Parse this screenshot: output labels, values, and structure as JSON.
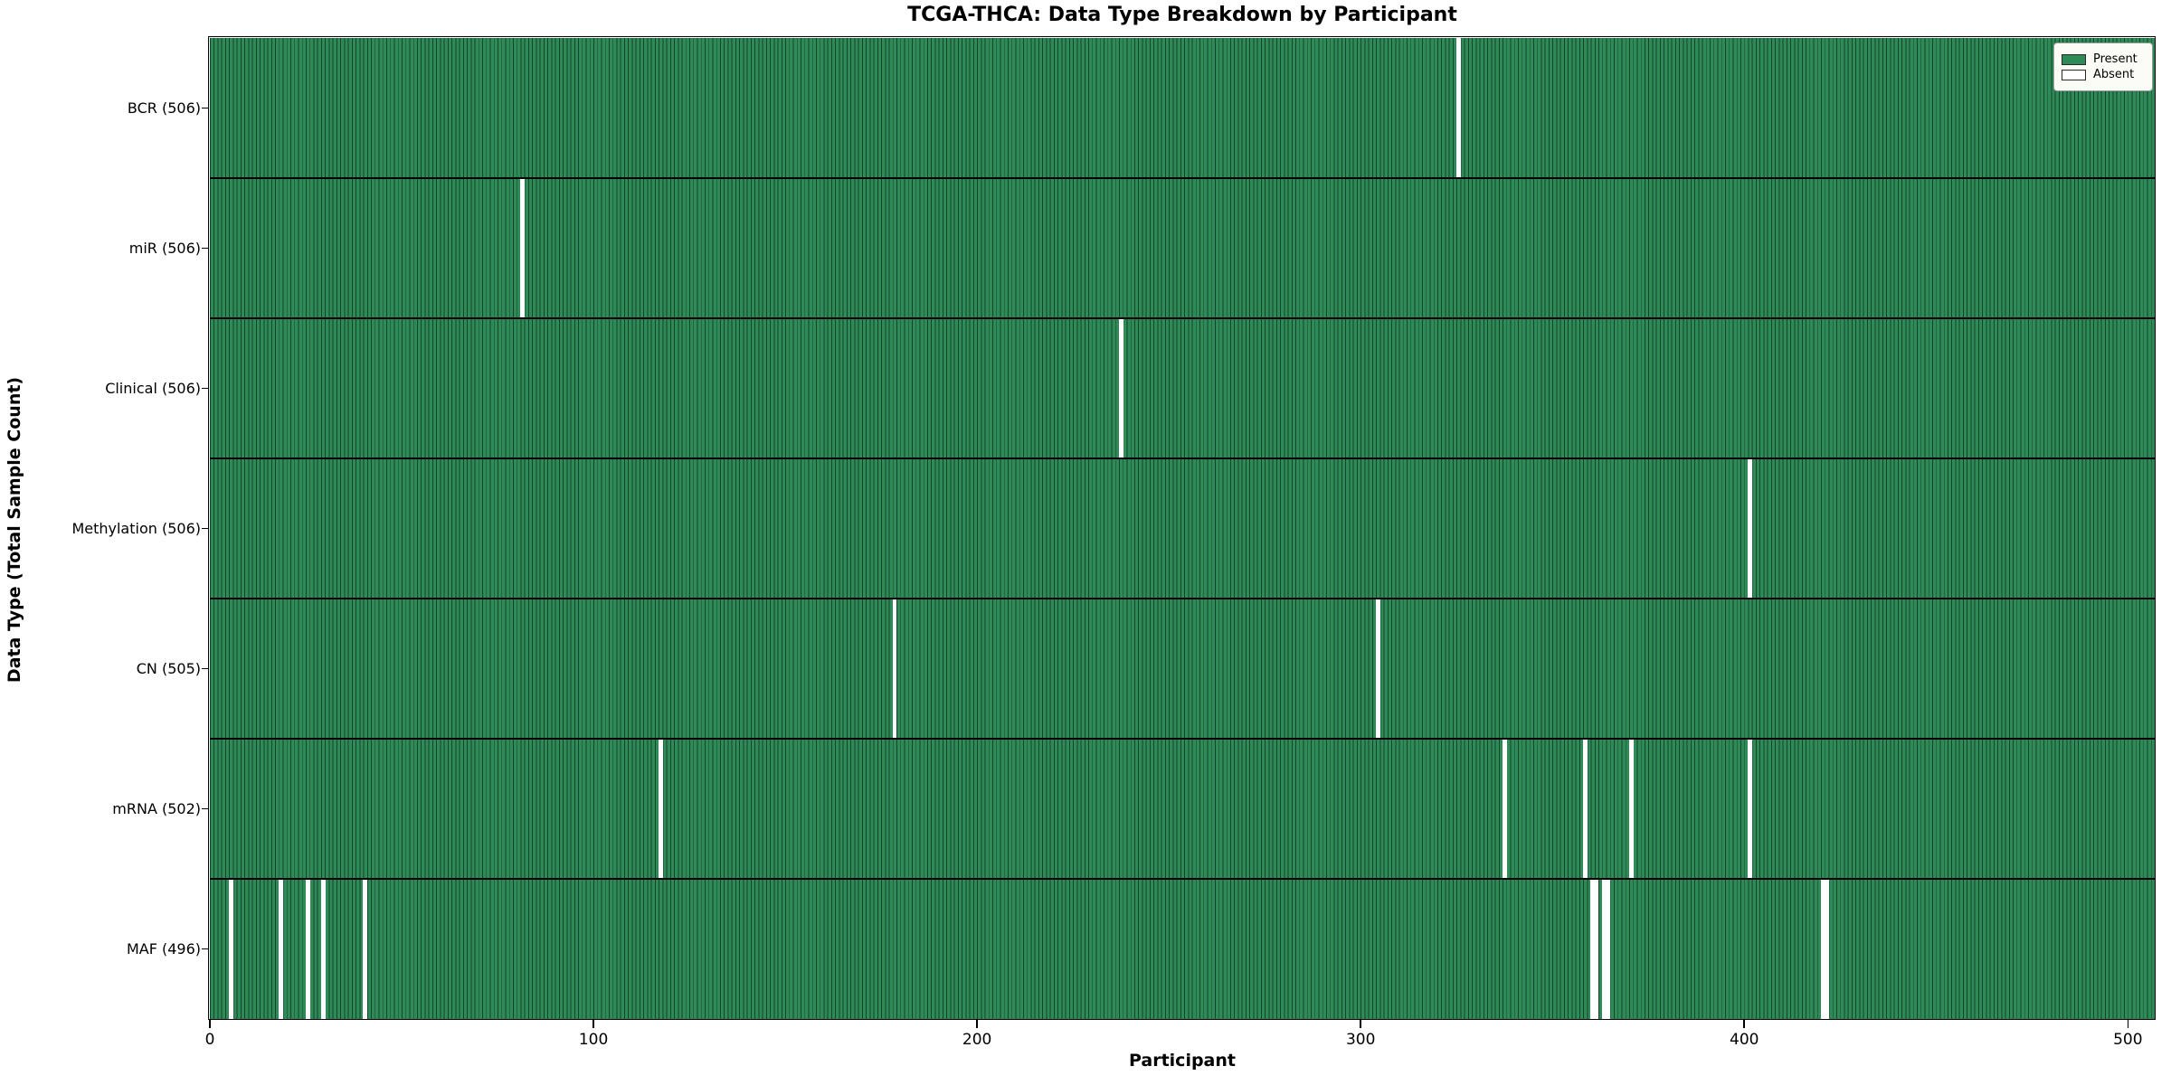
{
  "title": "TCGA-THCA: Data Type Breakdown by Participant",
  "xlabel": "Participant",
  "ylabel": "Data Type (Total Sample Count)",
  "legend": {
    "present_label": "Present",
    "absent_label": "Absent"
  },
  "colors": {
    "present": "#2e8b57",
    "absent": "#ffffff",
    "bar_edge": "#17432b",
    "axis": "#000000",
    "legend_bg": "#fcfcf7"
  },
  "x_ticks": [
    0,
    100,
    200,
    300,
    400,
    500
  ],
  "chart_data": {
    "type": "heatmap",
    "title": "TCGA-THCA: Data Type Breakdown by Participant",
    "xlabel": "Participant",
    "ylabel": "Data Type (Total Sample Count)",
    "x_range": [
      0,
      507
    ],
    "total_participants": 507,
    "legend_entries": [
      "Present",
      "Absent"
    ],
    "legend_position": "upper right",
    "rows": [
      {
        "label": "BCR (506)",
        "data_type": "BCR",
        "present_count": 506,
        "absent_participants": [
          325
        ]
      },
      {
        "label": "miR (506)",
        "data_type": "miR",
        "present_count": 506,
        "absent_participants": [
          81
        ]
      },
      {
        "label": "Clinical (506)",
        "data_type": "Clinical",
        "present_count": 506,
        "absent_participants": [
          237
        ]
      },
      {
        "label": "Methylation (506)",
        "data_type": "Methylation",
        "present_count": 506,
        "absent_participants": [
          401
        ]
      },
      {
        "label": "CN (505)",
        "data_type": "CN",
        "present_count": 505,
        "absent_participants": [
          178,
          304
        ]
      },
      {
        "label": "mRNA (502)",
        "data_type": "mRNA",
        "present_count": 502,
        "absent_participants": [
          117,
          337,
          358,
          370,
          401
        ]
      },
      {
        "label": "MAF (496)",
        "data_type": "MAF",
        "present_count": 496,
        "absent_participants": [
          5,
          18,
          25,
          29,
          40,
          360,
          361,
          363,
          364,
          420,
          421
        ]
      }
    ]
  }
}
